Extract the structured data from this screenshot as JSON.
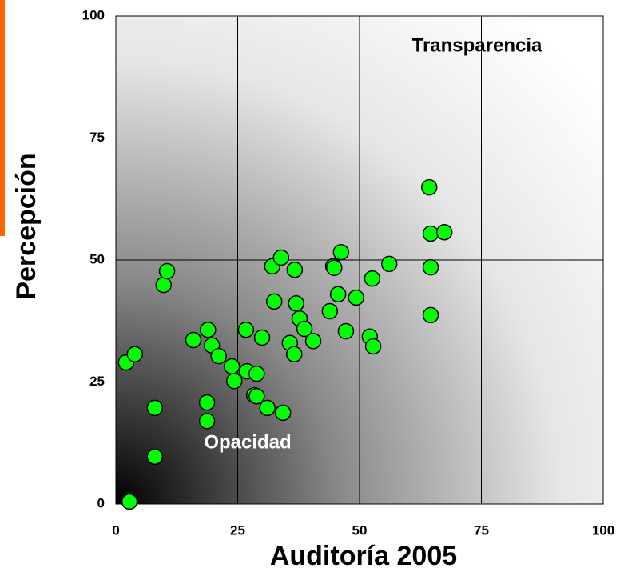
{
  "chart_data": {
    "type": "scatter",
    "x_label": "Auditoría 2005",
    "y_label": "Percepción",
    "annotations": [
      "Transparencia",
      "Opacidad"
    ],
    "color": "#00ff00",
    "x": [
      2.8,
      2.1,
      3.9,
      8.0,
      8.0,
      9.8,
      10.5,
      15.9,
      18.9,
      19.7,
      21.1,
      18.7,
      18.7,
      23.8,
      24.3,
      26.7,
      26.9,
      28.9,
      28.4,
      28.9,
      30.0,
      31.1,
      32.1,
      32.5,
      33.9,
      34.3,
      35.7,
      36.6,
      36.7,
      37.0,
      37.7,
      38.7,
      40.5,
      43.9,
      44.6,
      44.8,
      45.6,
      46.2,
      47.2,
      49.3,
      52.1,
      52.6,
      52.8,
      56.1,
      64.3,
      64.6,
      64.6,
      64.6,
      67.4
    ],
    "values": [
      0.5,
      29.0,
      30.7,
      19.7,
      9.7,
      44.9,
      47.7,
      33.6,
      35.7,
      32.5,
      30.3,
      20.8,
      17.0,
      28.2,
      25.2,
      35.7,
      27.2,
      26.7,
      22.3,
      22.1,
      34.1,
      19.7,
      48.7,
      41.5,
      50.5,
      18.7,
      33.0,
      30.7,
      48.0,
      41.1,
      38.0,
      35.9,
      33.4,
      39.5,
      48.7,
      48.4,
      43.0,
      51.6,
      35.4,
      42.3,
      34.3,
      46.2,
      32.3,
      49.2,
      64.9,
      55.4,
      48.5,
      38.7,
      55.7
    ],
    "xlim": [
      0,
      100
    ],
    "ylim": [
      0,
      100
    ],
    "xticks": [
      0,
      25,
      50,
      75,
      100
    ],
    "yticks": [
      0,
      25,
      50,
      75,
      100
    ],
    "grid": true
  }
}
